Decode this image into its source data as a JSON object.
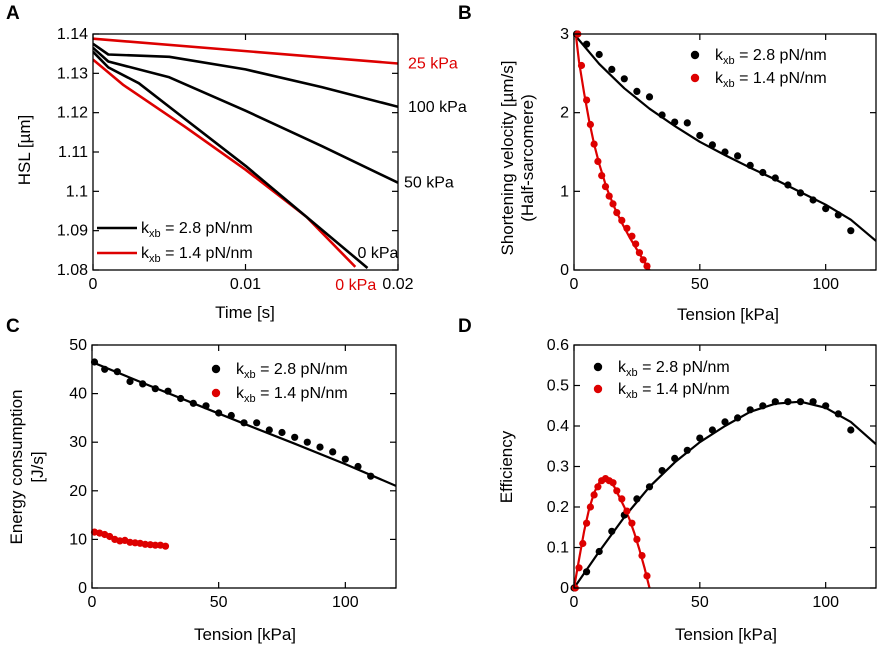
{
  "colors": {
    "black": "#000000",
    "red": "#dd0000"
  },
  "chart_data": [
    {
      "panel": "A",
      "type": "line",
      "xlabel": "Time  [s]",
      "ylabel": "HSL [µm]",
      "xlim": [
        0,
        0.02
      ],
      "ylim": [
        1.08,
        1.14
      ],
      "xticks": [
        0,
        0.01,
        0.02
      ],
      "xtick_labels": [
        "0",
        "0.01",
        "0.02"
      ],
      "yticks": [
        1.08,
        1.09,
        1.1,
        1.11,
        1.12,
        1.13,
        1.14
      ],
      "ytick_labels": [
        "1.08",
        "1.09",
        "1.1",
        "1.11",
        "1.12",
        "1.13",
        "1.14"
      ],
      "legend": {
        "sub": "xb",
        "black": " = 2.8 pN/nm",
        "red": " = 1.4 pN/nm"
      },
      "series": [
        {
          "name": "25 kPa",
          "color": "red",
          "label": "25 kPa",
          "x": [
            0,
            0.02
          ],
          "y": [
            1.1388,
            1.1325
          ]
        },
        {
          "name": "0 kPa",
          "color": "red",
          "label": "0 kPa",
          "x": [
            0,
            0.002,
            0.006,
            0.01,
            0.014,
            0.0172
          ],
          "y": [
            1.1335,
            1.127,
            1.1165,
            1.1055,
            1.0935,
            1.0808
          ]
        },
        {
          "name": "100 kPa",
          "color": "black",
          "label": "100 kPa",
          "x": [
            0,
            0.001,
            0.005,
            0.01,
            0.015,
            0.02
          ],
          "y": [
            1.1375,
            1.1348,
            1.1342,
            1.131,
            1.1265,
            1.1215
          ]
        },
        {
          "name": "50 kPa",
          "color": "black",
          "label": "50 kPa",
          "x": [
            0,
            0.001,
            0.005,
            0.01,
            0.015,
            0.02
          ],
          "y": [
            1.1365,
            1.133,
            1.129,
            1.1205,
            1.1115,
            1.1022
          ]
        },
        {
          "name": "0 kPa",
          "color": "black",
          "label": "0 kPa",
          "x": [
            0,
            0.001,
            0.003,
            0.006,
            0.01,
            0.014,
            0.018
          ],
          "y": [
            1.1355,
            1.1315,
            1.1275,
            1.1185,
            1.1065,
            1.0935,
            1.0805
          ]
        }
      ]
    },
    {
      "panel": "B",
      "type": "scatter",
      "xlabel": "Tension  [kPa]",
      "ylabel": "Shortening velocity [µm/s]",
      "ylabel2": "(Half-sarcomere)",
      "xlim": [
        0,
        120
      ],
      "ylim": [
        0,
        3
      ],
      "xticks": [
        0,
        50,
        100
      ],
      "xtick_labels": [
        "0",
        "50",
        "100"
      ],
      "yticks": [
        0,
        1,
        2,
        3
      ],
      "ytick_labels": [
        "0",
        "1",
        "2",
        "3"
      ],
      "legend": {
        "sub": "xb",
        "black": " = 2.8 pN/nm",
        "red": " = 1.4 pN/nm"
      },
      "series": [
        {
          "name": "kxb = 2.8 pN/nm",
          "color": "black",
          "points": [
            [
              1,
              3.0
            ],
            [
              5,
              2.87
            ],
            [
              10,
              2.74
            ],
            [
              15,
              2.55
            ],
            [
              20,
              2.43
            ],
            [
              25,
              2.27
            ],
            [
              30,
              2.2
            ],
            [
              35,
              1.97
            ],
            [
              40,
              1.88
            ],
            [
              45,
              1.87
            ],
            [
              50,
              1.71
            ],
            [
              55,
              1.59
            ],
            [
              60,
              1.5
            ],
            [
              65,
              1.45
            ],
            [
              70,
              1.33
            ],
            [
              75,
              1.24
            ],
            [
              80,
              1.17
            ],
            [
              85,
              1.08
            ],
            [
              90,
              0.98
            ],
            [
              95,
              0.89
            ],
            [
              100,
              0.78
            ],
            [
              105,
              0.7
            ],
            [
              110,
              0.5
            ]
          ],
          "fit": [
            [
              0,
              3.0
            ],
            [
              10,
              2.62
            ],
            [
              20,
              2.31
            ],
            [
              30,
              2.05
            ],
            [
              40,
              1.83
            ],
            [
              50,
              1.63
            ],
            [
              60,
              1.46
            ],
            [
              70,
              1.3
            ],
            [
              80,
              1.15
            ],
            [
              90,
              0.99
            ],
            [
              100,
              0.83
            ],
            [
              110,
              0.64
            ],
            [
              120,
              0.37
            ]
          ]
        },
        {
          "name": "kxb = 1.4 pN/nm",
          "color": "red",
          "points": [
            [
              1.5,
              3.0
            ],
            [
              3,
              2.6
            ],
            [
              5,
              2.16
            ],
            [
              6.5,
              1.85
            ],
            [
              8,
              1.6
            ],
            [
              9.5,
              1.38
            ],
            [
              11,
              1.2
            ],
            [
              12.5,
              1.06
            ],
            [
              14,
              0.94
            ],
            [
              15.5,
              0.84
            ],
            [
              17,
              0.73
            ],
            [
              19,
              0.63
            ],
            [
              21,
              0.53
            ],
            [
              23,
              0.43
            ],
            [
              24.5,
              0.33
            ],
            [
              26,
              0.22
            ],
            [
              27.5,
              0.13
            ],
            [
              29,
              0.05
            ]
          ],
          "fit": [
            [
              0.5,
              3.05
            ],
            [
              2,
              2.65
            ],
            [
              4,
              2.25
            ],
            [
              6,
              1.9
            ],
            [
              8,
              1.6
            ],
            [
              10,
              1.35
            ],
            [
              13,
              1.04
            ],
            [
              16,
              0.8
            ],
            [
              19,
              0.6
            ],
            [
              22,
              0.42
            ],
            [
              25,
              0.26
            ],
            [
              28,
              0.1
            ],
            [
              30,
              0.0
            ]
          ]
        }
      ]
    },
    {
      "panel": "C",
      "type": "scatter",
      "xlabel": "Tension  [kPa]",
      "ylabel": "Energy consumption",
      "ylabel2": "[J/s]",
      "xlim": [
        0,
        120
      ],
      "ylim": [
        0,
        50
      ],
      "xticks": [
        0,
        50,
        100
      ],
      "xtick_labels": [
        "0",
        "50",
        "100"
      ],
      "yticks": [
        0,
        10,
        20,
        30,
        40,
        50
      ],
      "ytick_labels": [
        "0",
        "10",
        "20",
        "30",
        "40",
        "50"
      ],
      "legend": {
        "sub": "xb",
        "black": " = 2.8 pN/nm",
        "red": " = 1.4 pN/nm"
      },
      "series": [
        {
          "name": "kxb = 2.8 pN/nm",
          "color": "black",
          "points": [
            [
              1,
              46.5
            ],
            [
              5,
              45
            ],
            [
              10,
              44.5
            ],
            [
              15,
              42.5
            ],
            [
              20,
              42
            ],
            [
              25,
              41
            ],
            [
              30,
              40.5
            ],
            [
              35,
              39
            ],
            [
              40,
              38
            ],
            [
              45,
              37.5
            ],
            [
              50,
              36
            ],
            [
              55,
              35.5
            ],
            [
              60,
              34
            ],
            [
              65,
              34
            ],
            [
              70,
              32.5
            ],
            [
              75,
              32
            ],
            [
              80,
              31
            ],
            [
              85,
              30
            ],
            [
              90,
              29
            ],
            [
              95,
              28
            ],
            [
              100,
              26.5
            ],
            [
              105,
              25
            ],
            [
              110,
              23
            ]
          ],
          "fit": [
            [
              0,
              46.5
            ],
            [
              20,
              42.2
            ],
            [
              40,
              38.0
            ],
            [
              60,
              33.8
            ],
            [
              80,
              29.7
            ],
            [
              100,
              25.5
            ],
            [
              120,
              21.0
            ]
          ]
        },
        {
          "name": "kxb = 1.4 pN/nm",
          "color": "red",
          "points": [
            [
              1,
              11.5
            ],
            [
              3,
              11.3
            ],
            [
              5,
              11.0
            ],
            [
              7,
              10.6
            ],
            [
              9,
              10.0
            ],
            [
              11,
              9.7
            ],
            [
              13,
              9.8
            ],
            [
              15,
              9.4
            ],
            [
              17,
              9.3
            ],
            [
              19,
              9.2
            ],
            [
              21,
              9.0
            ],
            [
              23,
              8.9
            ],
            [
              25,
              8.8
            ],
            [
              27,
              8.8
            ],
            [
              29,
              8.6
            ]
          ],
          "fit": [
            [
              0,
              11.5
            ],
            [
              5,
              10.9
            ],
            [
              10,
              10.1
            ],
            [
              15,
              9.6
            ],
            [
              20,
              9.2
            ],
            [
              25,
              8.9
            ],
            [
              30,
              8.6
            ]
          ]
        }
      ]
    },
    {
      "panel": "D",
      "type": "scatter",
      "xlabel": "Tension  [kPa]",
      "ylabel": "Efficiency",
      "xlim": [
        0,
        120
      ],
      "ylim": [
        0,
        0.6
      ],
      "xticks": [
        0,
        50,
        100
      ],
      "xtick_labels": [
        "0",
        "50",
        "100"
      ],
      "yticks": [
        0,
        0.1,
        0.2,
        0.3,
        0.4,
        0.5,
        0.6
      ],
      "ytick_labels": [
        "0",
        "0.1",
        "0.2",
        "0.3",
        "0.4",
        "0.5",
        "0.6"
      ],
      "legend": {
        "sub": "xb",
        "black": " = 2.8 pN/nm",
        "red": " = 1.4 pN/nm"
      },
      "series": [
        {
          "name": "kxb = 2.8 pN/nm",
          "color": "black",
          "points": [
            [
              0,
              0.0
            ],
            [
              5,
              0.04
            ],
            [
              10,
              0.09
            ],
            [
              15,
              0.14
            ],
            [
              20,
              0.18
            ],
            [
              25,
              0.22
            ],
            [
              30,
              0.25
            ],
            [
              35,
              0.29
            ],
            [
              40,
              0.32
            ],
            [
              45,
              0.34
            ],
            [
              50,
              0.37
            ],
            [
              55,
              0.39
            ],
            [
              60,
              0.41
            ],
            [
              65,
              0.42
            ],
            [
              70,
              0.44
            ],
            [
              75,
              0.45
            ],
            [
              80,
              0.46
            ],
            [
              85,
              0.46
            ],
            [
              90,
              0.46
            ],
            [
              95,
              0.46
            ],
            [
              100,
              0.45
            ],
            [
              105,
              0.43
            ],
            [
              110,
              0.39
            ]
          ],
          "fit": [
            [
              0,
              0.0
            ],
            [
              10,
              0.09
            ],
            [
              20,
              0.175
            ],
            [
              30,
              0.25
            ],
            [
              40,
              0.31
            ],
            [
              50,
              0.36
            ],
            [
              60,
              0.4
            ],
            [
              70,
              0.435
            ],
            [
              80,
              0.455
            ],
            [
              90,
              0.46
            ],
            [
              100,
              0.445
            ],
            [
              110,
              0.41
            ],
            [
              120,
              0.355
            ]
          ]
        },
        {
          "name": "kxb = 1.4 pN/nm",
          "color": "red",
          "points": [
            [
              0.5,
              0.0
            ],
            [
              2,
              0.05
            ],
            [
              3.5,
              0.11
            ],
            [
              5,
              0.16
            ],
            [
              6.5,
              0.2
            ],
            [
              8,
              0.23
            ],
            [
              9.5,
              0.25
            ],
            [
              11,
              0.265
            ],
            [
              12.5,
              0.27
            ],
            [
              14,
              0.265
            ],
            [
              15.5,
              0.26
            ],
            [
              17,
              0.24
            ],
            [
              19,
              0.22
            ],
            [
              21,
              0.19
            ],
            [
              23,
              0.16
            ],
            [
              25,
              0.12
            ],
            [
              27,
              0.08
            ],
            [
              29,
              0.03
            ]
          ],
          "fit": [
            [
              0,
              0.0
            ],
            [
              2,
              0.07
            ],
            [
              4,
              0.14
            ],
            [
              6,
              0.195
            ],
            [
              8,
              0.235
            ],
            [
              10,
              0.26
            ],
            [
              12,
              0.27
            ],
            [
              14,
              0.265
            ],
            [
              16,
              0.25
            ],
            [
              18,
              0.225
            ],
            [
              20,
              0.2
            ],
            [
              22,
              0.17
            ],
            [
              24,
              0.135
            ],
            [
              26,
              0.095
            ],
            [
              28,
              0.05
            ],
            [
              30,
              0.0
            ]
          ]
        }
      ]
    }
  ]
}
